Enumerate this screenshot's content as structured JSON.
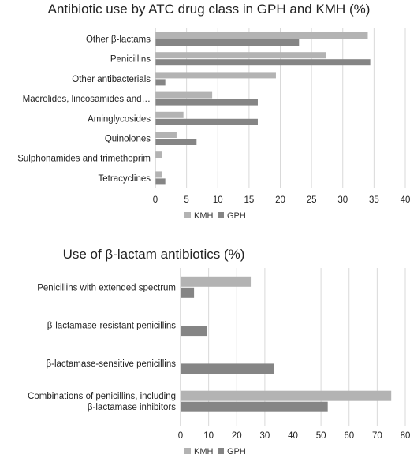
{
  "chart_data": [
    {
      "type": "bar",
      "orientation": "horizontal",
      "title": "Antibiotic use by ATC drug class in GPH and KMH (%)",
      "categories": [
        "Other β-lactams",
        "Penicillins",
        "Other antibacterials",
        "Macrolides, lincosamides and…",
        "Aminglycosides",
        "Quinolones",
        "Sulphonamides and trimethoprim",
        "Tetracyclines"
      ],
      "series": [
        {
          "name": "KMH",
          "color": "#b3b3b3",
          "values": [
            34,
            27.3,
            19.3,
            9.1,
            4.5,
            3.4,
            1.1,
            1.1
          ]
        },
        {
          "name": "GPH",
          "color": "#858585",
          "values": [
            23,
            34.4,
            1.6,
            16.4,
            16.4,
            6.6,
            0,
            1.6
          ]
        }
      ],
      "xlim": [
        0,
        40
      ],
      "ticks": [
        "0",
        "5",
        "10",
        "15",
        "20",
        "25",
        "30",
        "35",
        "40"
      ],
      "grid": true,
      "legend": "bottom"
    },
    {
      "type": "bar",
      "orientation": "horizontal",
      "title": "Use of β-lactam antibiotics (%)",
      "categories": [
        "Penicillins with extended spectrum",
        "β-lactamase-resistant penicillins",
        "β-lactamase-sensitive penicillins",
        "Combinations of penicillins, including β-lactamase inhibitors"
      ],
      "category_lines": [
        [
          "Penicillins with extended spectrum"
        ],
        [
          "β-lactamase-resistant penicillins"
        ],
        [
          "β-lactamase-sensitive penicillins"
        ],
        [
          "Combinations of penicillins, including",
          "β-lactamase inhibitors"
        ]
      ],
      "series": [
        {
          "name": "KMH",
          "color": "#b3b3b3",
          "values": [
            25,
            0,
            0,
            75
          ]
        },
        {
          "name": "GPH",
          "color": "#858585",
          "values": [
            4.8,
            9.5,
            33.3,
            52.4
          ]
        }
      ],
      "xlim": [
        0,
        80
      ],
      "ticks": [
        "0",
        "10",
        "20",
        "30",
        "40",
        "50",
        "60",
        "70",
        "80"
      ],
      "grid": true,
      "legend": "bottom"
    }
  ]
}
